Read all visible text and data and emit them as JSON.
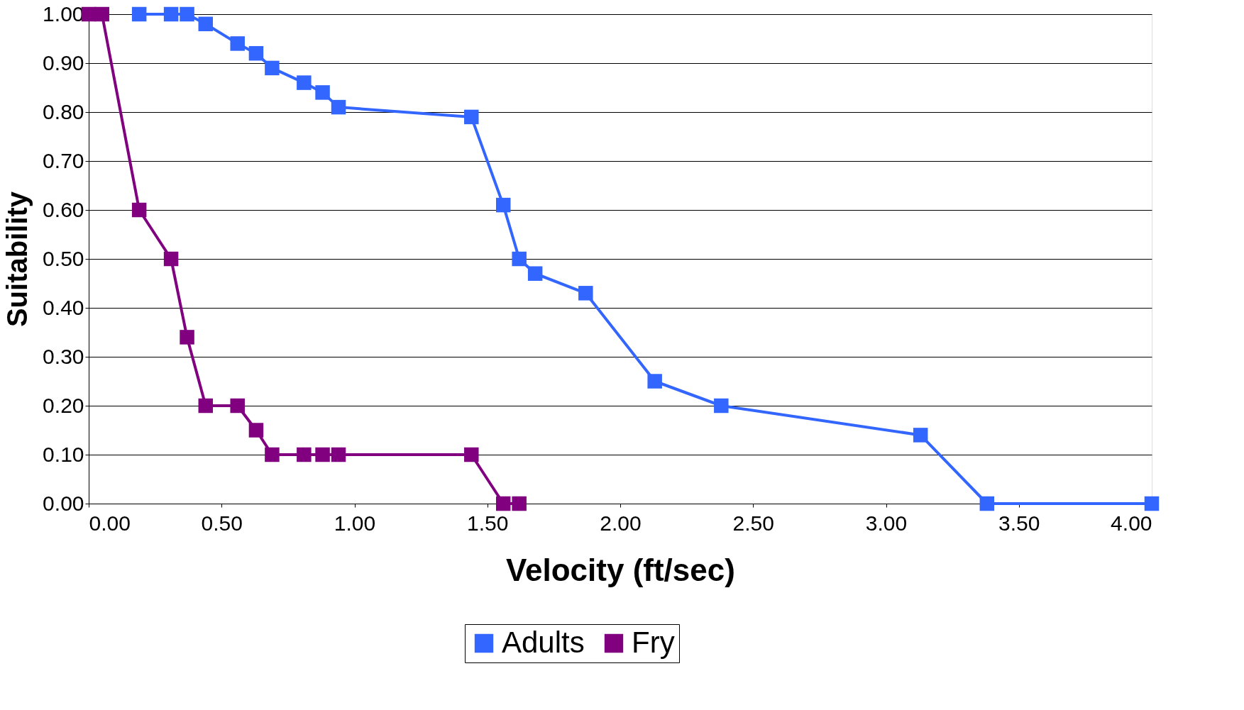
{
  "chart_data": {
    "type": "line",
    "xlabel": "Velocity (ft/sec)",
    "ylabel": "Suitability",
    "series": [
      {
        "name": "Adults",
        "color": "#3366ff",
        "x": [
          0.19,
          0.31,
          0.37,
          0.44,
          0.56,
          0.63,
          0.69,
          0.81,
          0.88,
          0.94,
          1.44,
          1.56,
          1.62,
          1.68,
          1.87,
          2.13,
          2.38,
          3.13,
          3.38,
          4.0
        ],
        "values": [
          1.0,
          1.0,
          1.0,
          0.98,
          0.94,
          0.92,
          0.89,
          0.86,
          0.84,
          0.81,
          0.79,
          0.61,
          0.5,
          0.47,
          0.43,
          0.25,
          0.2,
          0.14,
          0.0,
          0.0
        ]
      },
      {
        "name": "Fry",
        "color": "#800080",
        "x": [
          0,
          0.05,
          0.19,
          0.31,
          0.37,
          0.44,
          0.56,
          0.63,
          0.69,
          0.81,
          0.88,
          0.94,
          1.44,
          1.56,
          1.62
        ],
        "values": [
          1.0,
          1.0,
          0.6,
          0.5,
          0.34,
          0.2,
          0.2,
          0.15,
          0.1,
          0.1,
          0.1,
          0.1,
          0.1,
          0.0,
          0.0
        ]
      }
    ],
    "xlim": [
      0,
      4
    ],
    "ylim": [
      0,
      1
    ],
    "xticks": [
      {
        "value": 0,
        "label": "0.00"
      },
      {
        "value": 0.5,
        "label": "0.50"
      },
      {
        "value": 1,
        "label": "1.00"
      },
      {
        "value": 1.5,
        "label": "1.50"
      },
      {
        "value": 2,
        "label": "2.00"
      },
      {
        "value": 2.5,
        "label": "2.50"
      },
      {
        "value": 3,
        "label": "3.00"
      },
      {
        "value": 3.5,
        "label": "3.50"
      },
      {
        "value": 4,
        "label": "4.00"
      }
    ],
    "yticks": [
      {
        "value": 0,
        "label": "0.00"
      },
      {
        "value": 0.1,
        "label": "0.10"
      },
      {
        "value": 0.2,
        "label": "0.20"
      },
      {
        "value": 0.3,
        "label": "0.30"
      },
      {
        "value": 0.4,
        "label": "0.40"
      },
      {
        "value": 0.5,
        "label": "0.50"
      },
      {
        "value": 0.6,
        "label": "0.60"
      },
      {
        "value": 0.7,
        "label": "0.70"
      },
      {
        "value": 0.8,
        "label": "0.80"
      },
      {
        "value": 0.9,
        "label": "0.90"
      },
      {
        "value": 1,
        "label": "1.00"
      }
    ],
    "grid": "y",
    "legend": "bottom",
    "marker": "square",
    "line_style": "solid"
  }
}
